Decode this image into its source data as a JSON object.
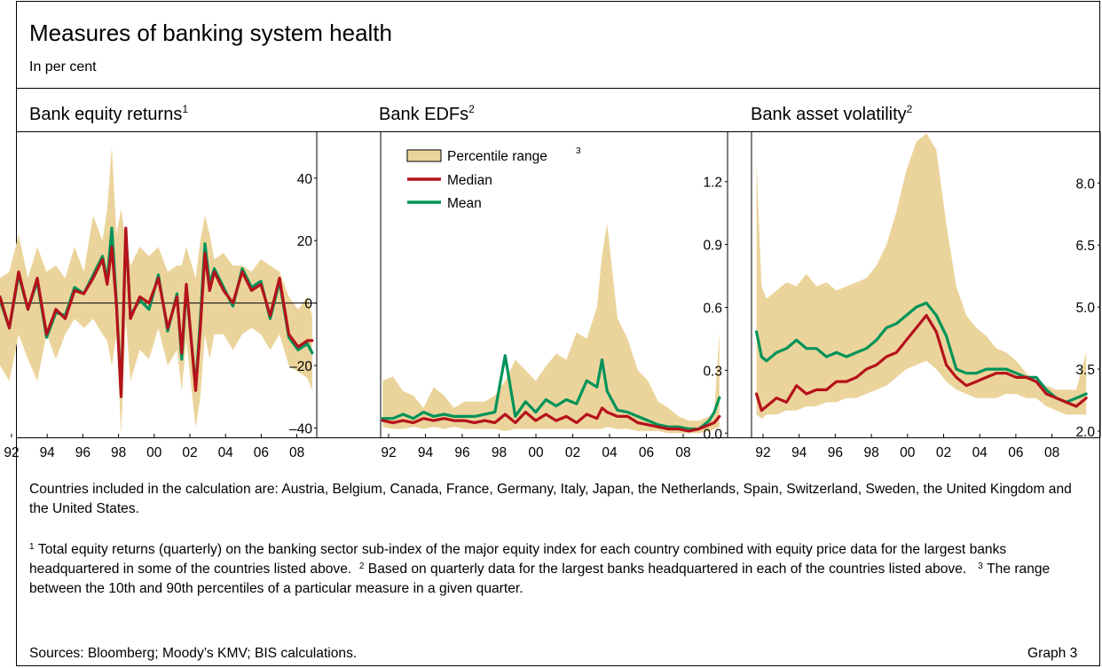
{
  "header": {
    "title": "Measures of banking system health",
    "subtitle": "In per cent"
  },
  "panels": [
    {
      "title": "Bank equity returns",
      "sup": "1"
    },
    {
      "title": "Bank EDFs",
      "sup": "2"
    },
    {
      "title": "Bank asset volatility",
      "sup": "2"
    }
  ],
  "legend": {
    "range_label": "Percentile range",
    "range_sup": "3",
    "median_label": "Median",
    "mean_label": "Mean"
  },
  "colors": {
    "band": "#ebd49b",
    "median": "#b5121b",
    "mean": "#00935a"
  },
  "notes": {
    "countries": "Countries included in the calculation are: Austria, Belgium, Canada, France, Germany, Italy, Japan, the Netherlands, Spain, Switzerland, Sweden, the United Kingdom and the United States.",
    "fn1_num": "1",
    "fn1": "Total equity returns (quarterly) on the banking sector sub-index of the major equity index for each country combined with equity price data for the largest banks headquartered in some of the countries listed above.",
    "fn2_num": "2",
    "fn2": "Based on quarterly data for the largest banks headquartered in each of the countries listed above.",
    "fn3_num": "3",
    "fn3": "The range between the 10th and 90th percentiles of a particular measure in a given quarter."
  },
  "footer": {
    "sources": "Sources: Bloomberg; Moody’s KMV; BIS calculations.",
    "graph": "Graph 3"
  },
  "chart_data": [
    {
      "type": "area",
      "title": "Bank equity returns",
      "x_ticks": [
        "92",
        "94",
        "96",
        "98",
        "00",
        "02",
        "04",
        "06",
        "08"
      ],
      "y_ticks": [
        "–40",
        "–20",
        "0",
        "20",
        "40"
      ],
      "ylim": [
        -43,
        55
      ],
      "xlim": [
        1992.0,
        2009.0
      ],
      "zero_line": true,
      "x": [
        1992.0,
        1992.5,
        1993.0,
        1993.5,
        1994.0,
        1994.5,
        1995.0,
        1995.5,
        1996.0,
        1996.5,
        1997.0,
        1997.5,
        1997.75,
        1998.0,
        1998.25,
        1998.5,
        1998.75,
        1999.0,
        1999.5,
        2000.0,
        2000.5,
        2001.0,
        2001.5,
        2001.75,
        2002.0,
        2002.5,
        2002.75,
        2003.0,
        2003.25,
        2003.5,
        2004.0,
        2004.5,
        2005.0,
        2005.5,
        2006.0,
        2006.5,
        2007.0,
        2007.5,
        2008.0,
        2008.5,
        2008.75
      ],
      "series": [
        {
          "name": "Percentile range",
          "kind": "band",
          "low": [
            -20,
            -25,
            -10,
            -18,
            -25,
            -10,
            -18,
            -10,
            -5,
            -8,
            -5,
            -10,
            -12,
            -20,
            -10,
            -42,
            -5,
            -25,
            -15,
            -18,
            -8,
            -20,
            -15,
            -28,
            -12,
            -40,
            -30,
            -10,
            -18,
            -10,
            -10,
            -15,
            -10,
            -8,
            -10,
            -15,
            -10,
            -20,
            -22,
            -24,
            -28
          ],
          "high": [
            8,
            10,
            22,
            8,
            18,
            10,
            12,
            8,
            18,
            10,
            28,
            20,
            30,
            50,
            22,
            30,
            20,
            12,
            18,
            15,
            18,
            10,
            12,
            12,
            18,
            8,
            20,
            28,
            22,
            14,
            16,
            12,
            12,
            10,
            14,
            12,
            10,
            2,
            -2,
            2,
            -4
          ]
        },
        {
          "name": "Median",
          "kind": "line",
          "values": [
            2,
            -8,
            10,
            -2,
            8,
            -10,
            -2,
            -5,
            4,
            3,
            8,
            14,
            6,
            18,
            -1,
            -30,
            24,
            -5,
            2,
            0,
            8,
            -8,
            2,
            -16,
            6,
            -28,
            -8,
            16,
            4,
            10,
            4,
            0,
            10,
            4,
            6,
            -4,
            8,
            -10,
            -14,
            -12,
            -12
          ]
        },
        {
          "name": "Mean",
          "kind": "line",
          "values": [
            1,
            -8,
            9,
            -2,
            7,
            -11,
            -3,
            -4,
            5,
            3,
            9,
            15,
            7,
            24,
            0,
            -29,
            23,
            -4,
            1,
            -2,
            9,
            -9,
            3,
            -18,
            5,
            -27,
            -5,
            19,
            6,
            11,
            5,
            -1,
            11,
            5,
            7,
            -5,
            7,
            -11,
            -15,
            -13,
            -16
          ]
        }
      ]
    },
    {
      "type": "area",
      "title": "Bank EDFs",
      "x_ticks": [
        "92",
        "94",
        "96",
        "98",
        "00",
        "02",
        "04",
        "06",
        "08"
      ],
      "y_ticks": [
        "0.0",
        "0.3",
        "0.6",
        "0.9",
        "1.2"
      ],
      "ylim": [
        -0.02,
        1.44
      ],
      "xlim": [
        1991.9,
        2008.9
      ],
      "x": [
        1992.0,
        1992.5,
        1993.0,
        1993.5,
        1994.0,
        1994.5,
        1995.0,
        1995.5,
        1996.0,
        1996.5,
        1997.0,
        1997.5,
        1998.0,
        1998.5,
        1999.0,
        1999.5,
        2000.0,
        2000.5,
        2001.0,
        2001.5,
        2002.0,
        2002.5,
        2002.75,
        2003.0,
        2003.5,
        2004.0,
        2004.5,
        2005.0,
        2005.5,
        2006.0,
        2006.5,
        2007.0,
        2007.5,
        2008.0,
        2008.25,
        2008.5
      ],
      "series": [
        {
          "name": "Percentile range",
          "kind": "band",
          "low": [
            0.03,
            0.02,
            0.02,
            0.03,
            0.02,
            0.03,
            0.02,
            0.03,
            0.02,
            0.02,
            0.02,
            0.02,
            0.01,
            0.02,
            0.02,
            0.02,
            0.02,
            0.02,
            0.02,
            0.02,
            0.02,
            0.02,
            0.02,
            0.03,
            0.02,
            0.02,
            0.01,
            0.01,
            0.01,
            0.0,
            0.0,
            0.0,
            0.0,
            0.01,
            0.02,
            0.03
          ],
          "high": [
            0.25,
            0.27,
            0.2,
            0.18,
            0.12,
            0.22,
            0.18,
            0.12,
            0.15,
            0.15,
            0.15,
            0.18,
            0.25,
            0.35,
            0.3,
            0.25,
            0.32,
            0.38,
            0.35,
            0.48,
            0.45,
            0.6,
            0.85,
            1.0,
            0.55,
            0.45,
            0.3,
            0.25,
            0.15,
            0.12,
            0.08,
            0.06,
            0.06,
            0.08,
            0.1,
            0.48
          ]
        },
        {
          "name": "Median",
          "kind": "line",
          "values": [
            0.06,
            0.05,
            0.06,
            0.05,
            0.07,
            0.06,
            0.07,
            0.06,
            0.06,
            0.05,
            0.06,
            0.05,
            0.09,
            0.05,
            0.1,
            0.06,
            0.09,
            0.06,
            0.08,
            0.05,
            0.09,
            0.07,
            0.12,
            0.1,
            0.08,
            0.08,
            0.05,
            0.04,
            0.03,
            0.02,
            0.02,
            0.01,
            0.02,
            0.04,
            0.05,
            0.08
          ]
        },
        {
          "name": "Mean",
          "kind": "line",
          "values": [
            0.07,
            0.07,
            0.09,
            0.07,
            0.1,
            0.08,
            0.09,
            0.08,
            0.08,
            0.08,
            0.09,
            0.1,
            0.37,
            0.08,
            0.15,
            0.1,
            0.16,
            0.13,
            0.16,
            0.14,
            0.25,
            0.22,
            0.35,
            0.2,
            0.11,
            0.1,
            0.08,
            0.06,
            0.04,
            0.03,
            0.03,
            0.02,
            0.02,
            0.06,
            0.1,
            0.17
          ]
        }
      ]
    },
    {
      "type": "area",
      "title": "Bank asset volatility",
      "x_ticks": [
        "92",
        "94",
        "96",
        "98",
        "00",
        "02",
        "04",
        "06",
        "08"
      ],
      "y_ticks": [
        "2.0",
        "3.5",
        "5.0",
        "6.5",
        "8.0"
      ],
      "ylim": [
        1.85,
        9.25
      ],
      "xlim": [
        1991.75,
        2009.2
      ],
      "x": [
        1992.0,
        1992.25,
        1992.5,
        1993.0,
        1993.5,
        1994.0,
        1994.5,
        1995.0,
        1995.5,
        1996.0,
        1996.5,
        1997.0,
        1997.5,
        1998.0,
        1998.5,
        1999.0,
        1999.5,
        2000.0,
        2000.5,
        2001.0,
        2001.5,
        2002.0,
        2002.5,
        2003.0,
        2003.5,
        2004.0,
        2004.5,
        2005.0,
        2005.5,
        2006.0,
        2006.5,
        2007.0,
        2007.5,
        2008.0,
        2008.5
      ],
      "series": [
        {
          "name": "Percentile range",
          "kind": "band",
          "low": [
            2.4,
            2.3,
            2.4,
            2.4,
            2.5,
            2.5,
            2.6,
            2.6,
            2.7,
            2.7,
            2.8,
            2.8,
            2.9,
            3.0,
            3.1,
            3.3,
            3.5,
            3.6,
            3.7,
            3.5,
            3.2,
            3.0,
            2.9,
            2.8,
            2.8,
            2.8,
            2.9,
            2.9,
            2.8,
            2.8,
            2.6,
            2.5,
            2.4,
            2.4,
            2.4
          ],
          "high": [
            8.5,
            5.5,
            5.2,
            5.4,
            5.6,
            5.5,
            5.8,
            5.5,
            5.6,
            5.4,
            5.5,
            5.6,
            5.7,
            6.0,
            6.5,
            7.3,
            8.3,
            9.0,
            9.2,
            8.8,
            7.0,
            5.5,
            4.8,
            4.5,
            4.3,
            4.0,
            3.9,
            3.7,
            3.4,
            3.2,
            3.1,
            3.0,
            3.0,
            3.0,
            3.9
          ]
        },
        {
          "name": "Median",
          "kind": "line",
          "values": [
            2.9,
            2.5,
            2.6,
            2.8,
            2.7,
            3.1,
            2.9,
            3.0,
            3.0,
            3.2,
            3.2,
            3.3,
            3.5,
            3.6,
            3.8,
            3.9,
            4.2,
            4.5,
            4.8,
            4.4,
            3.6,
            3.3,
            3.1,
            3.2,
            3.3,
            3.4,
            3.4,
            3.3,
            3.3,
            3.2,
            2.9,
            2.8,
            2.7,
            2.6,
            2.8
          ]
        },
        {
          "name": "Mean",
          "kind": "line",
          "values": [
            4.4,
            3.8,
            3.7,
            3.9,
            4.0,
            4.2,
            4.0,
            4.0,
            3.8,
            3.9,
            3.8,
            3.9,
            4.0,
            4.2,
            4.5,
            4.6,
            4.8,
            5.0,
            5.1,
            4.8,
            4.3,
            3.5,
            3.4,
            3.4,
            3.5,
            3.5,
            3.5,
            3.4,
            3.3,
            3.3,
            3.0,
            2.8,
            2.7,
            2.8,
            2.9
          ]
        }
      ]
    }
  ]
}
